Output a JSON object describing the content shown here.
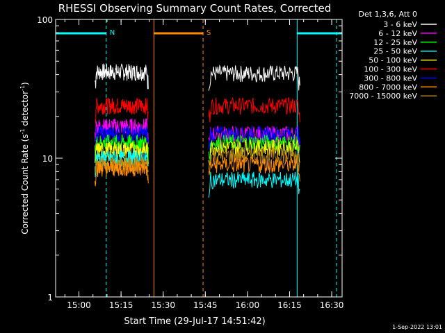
{
  "chart_data": {
    "type": "line",
    "title": "RHESSI Observing Summary Count Rates, Corrected",
    "xlabel": "Start Time (29-Jul-17 14:51:42)",
    "ylabel_main": "Corrected Count Rate (s",
    "ylabel_sup1": "-1",
    "ylabel_mid": " detector",
    "ylabel_sup2": "-1",
    "ylabel_end": ")",
    "x_range_minutes": [
      0,
      102
    ],
    "y_log_range": [
      1,
      100
    ],
    "x_ticks": [
      {
        "label": "15:00",
        "min": 8.3
      },
      {
        "label": "15:15",
        "min": 23.3
      },
      {
        "label": "15:30",
        "min": 38.3
      },
      {
        "label": "15:45",
        "min": 53.3
      },
      {
        "label": "16:00",
        "min": 68.3
      },
      {
        "label": "16:15",
        "min": 83.3
      },
      {
        "label": "16:30",
        "min": 98.3
      }
    ],
    "y_ticks": [
      {
        "label": "1",
        "value": 1
      },
      {
        "label": "10",
        "value": 10
      },
      {
        "label": "100",
        "value": 100
      }
    ],
    "legend": {
      "header": "Det 1,3,6, Att 0",
      "entries": [
        {
          "label": "3 - 6 keV",
          "color": "#ffffff"
        },
        {
          "label": "6 - 12 keV",
          "color": "#ff00ff"
        },
        {
          "label": "12 - 25 keV",
          "color": "#00ff00"
        },
        {
          "label": "25 - 50 keV",
          "color": "#00ffff"
        },
        {
          "label": "50 - 100 keV",
          "color": "#ffff00"
        },
        {
          "label": "100 - 300 keV",
          "color": "#ff0000"
        },
        {
          "label": "300 - 800 keV",
          "color": "#0000ff"
        },
        {
          "label": "800 - 7000 keV",
          "color": "#ff8c00"
        },
        {
          "label": "7000 - 15000 keV",
          "color": "#b8860b"
        }
      ]
    },
    "segments": [
      {
        "x_start": 14,
        "x_end": 33
      },
      {
        "x_start": 54.5,
        "x_end": 87
      }
    ],
    "series": [
      {
        "color": "#ffffff",
        "values": [
          42,
          41
        ]
      },
      {
        "color": "#ff0000",
        "values": [
          24,
          24
        ]
      },
      {
        "color": "#ff00ff",
        "values": [
          17,
          15
        ]
      },
      {
        "color": "#0000ff",
        "values": [
          15,
          15
        ]
      },
      {
        "color": "#00ff00",
        "values": [
          13,
          13
        ]
      },
      {
        "color": "#ffff00",
        "values": [
          11.5,
          12
        ]
      },
      {
        "color": "#00ffff",
        "values": [
          10,
          7
        ]
      },
      {
        "color": "#b8860b",
        "values": [
          9,
          10.5
        ]
      },
      {
        "color": "#ff8c00",
        "values": [
          8.5,
          9
        ]
      }
    ],
    "flags": [
      {
        "label": "N",
        "color": "#00ffff",
        "x_start": 0,
        "x_end": 18
      },
      {
        "label": "S",
        "color": "#ff8c00",
        "x_start": 35,
        "x_end": 52.5
      },
      {
        "label": "",
        "color": "#00ffff",
        "x_start": 86,
        "x_end": 102
      }
    ],
    "vlines": [
      {
        "x": 0,
        "color": "#00ffff",
        "dashed": false
      },
      {
        "x": 18,
        "color": "#00ffff",
        "dashed": true
      },
      {
        "x": 35,
        "color": "#ff8c00",
        "dashed": false
      },
      {
        "x": 52.5,
        "color": "#ff8c00",
        "dashed": true
      },
      {
        "x": 86,
        "color": "#00ffff",
        "dashed": false
      },
      {
        "x": 100,
        "color": "#00ffff",
        "dashed": true
      }
    ]
  },
  "footer": {
    "date": "1-Sep-2022 13:01"
  }
}
